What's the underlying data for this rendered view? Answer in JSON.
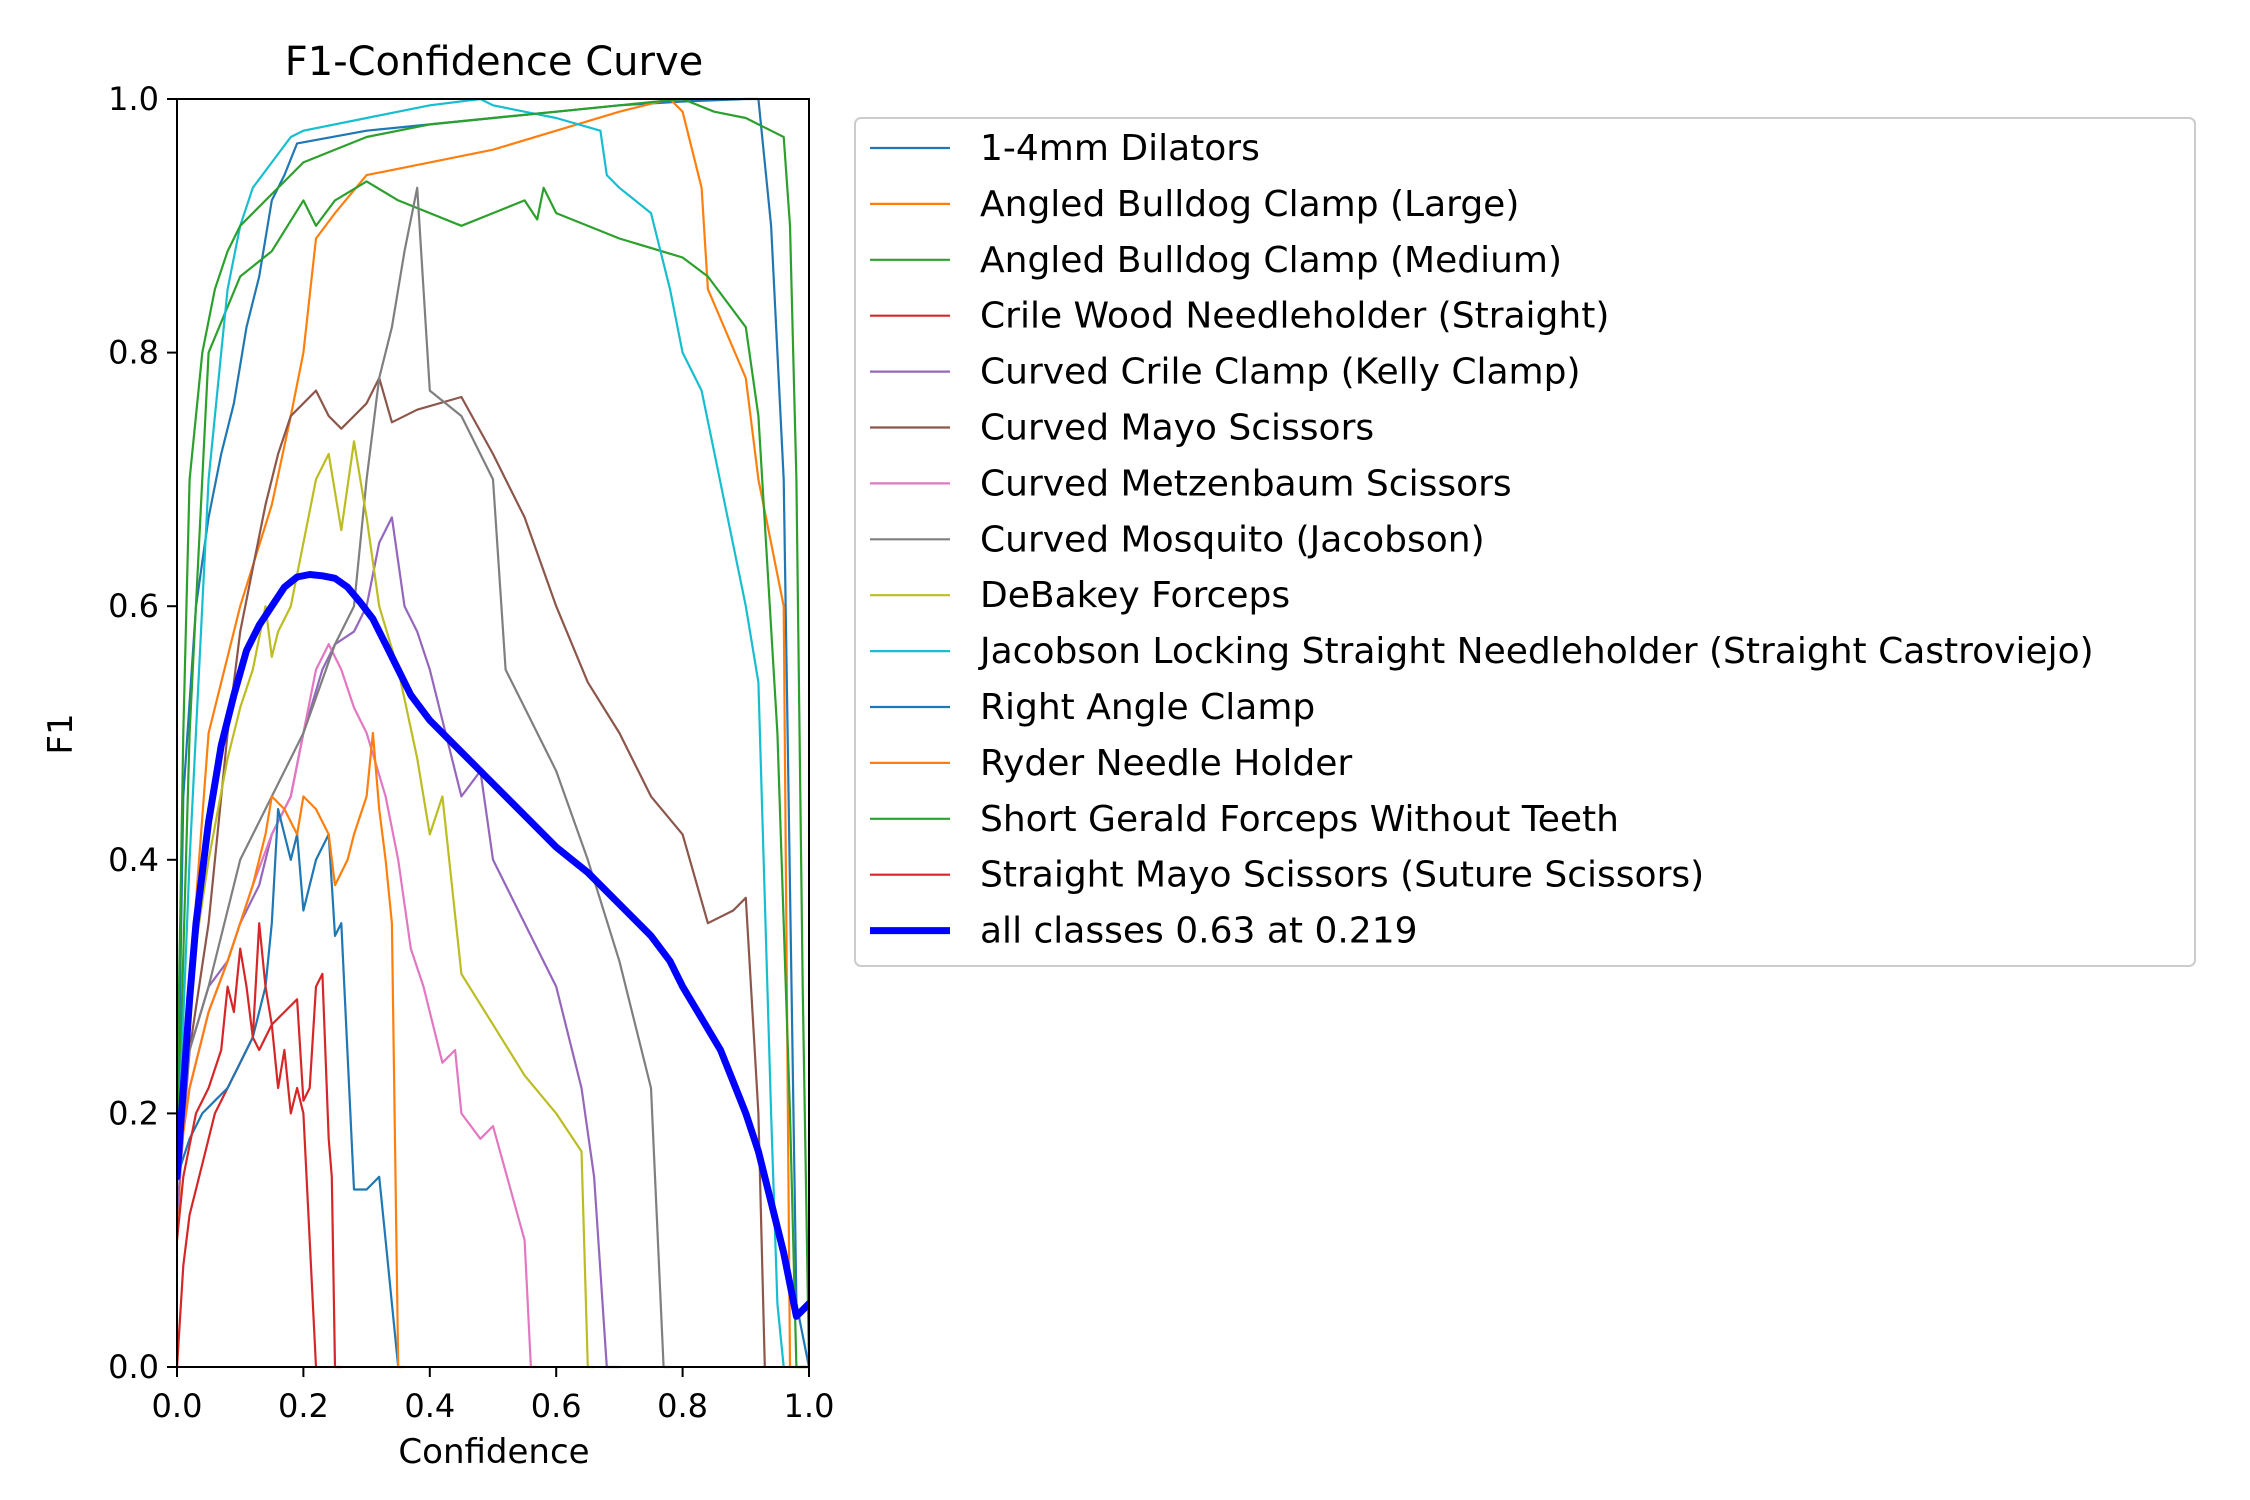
{
  "chart_data": {
    "type": "line",
    "title": "F1-Confidence Curve",
    "xlabel": "Confidence",
    "ylabel": "F1",
    "xlim": [
      0,
      1
    ],
    "ylim": [
      0,
      1
    ],
    "x_ticks": [
      "0.0",
      "0.2",
      "0.4",
      "0.6",
      "0.8",
      "1.0"
    ],
    "y_ticks": [
      "0.0",
      "0.2",
      "0.4",
      "0.6",
      "0.8",
      "1.0"
    ],
    "grid": false,
    "legend_position": "outside-right",
    "series": [
      {
        "name": "1-4mm Dilators",
        "color": "#1f77b4",
        "width": 2.2,
        "x": [
          0,
          0.01,
          0.03,
          0.05,
          0.07,
          0.09,
          0.11,
          0.13,
          0.15,
          0.17,
          0.19,
          0.3,
          0.4,
          0.5,
          0.6,
          0.7,
          0.8,
          0.9,
          0.92,
          0.94,
          0.96,
          0.98,
          1.0
        ],
        "y": [
          0.15,
          0.45,
          0.6,
          0.67,
          0.72,
          0.76,
          0.82,
          0.86,
          0.92,
          0.94,
          0.965,
          0.975,
          0.98,
          0.985,
          0.99,
          0.995,
          0.998,
          1.0,
          1.0,
          0.9,
          0.7,
          0.05,
          0.0
        ]
      },
      {
        "name": "Angled Bulldog Clamp (Large)",
        "color": "#ff7f0e",
        "width": 2.2,
        "x": [
          0,
          0.02,
          0.05,
          0.1,
          0.15,
          0.18,
          0.2,
          0.22,
          0.25,
          0.3,
          0.4,
          0.5,
          0.6,
          0.7,
          0.78,
          0.8,
          0.83,
          0.84,
          0.9,
          0.92,
          0.96,
          0.97,
          1.0
        ],
        "y": [
          0.1,
          0.3,
          0.5,
          0.6,
          0.68,
          0.75,
          0.8,
          0.89,
          0.91,
          0.94,
          0.95,
          0.96,
          0.975,
          0.99,
          1.0,
          0.99,
          0.93,
          0.85,
          0.78,
          0.7,
          0.6,
          0.0,
          0.0
        ]
      },
      {
        "name": "Angled Bulldog Clamp (Medium)",
        "color": "#2ca02c",
        "width": 2.2,
        "x": [
          0,
          0.02,
          0.05,
          0.1,
          0.15,
          0.2,
          0.22,
          0.25,
          0.3,
          0.35,
          0.45,
          0.5,
          0.55,
          0.57,
          0.58,
          0.6,
          0.7,
          0.8,
          0.84,
          0.9,
          0.92,
          0.95,
          0.97,
          0.98,
          1.0
        ],
        "y": [
          0.15,
          0.5,
          0.8,
          0.86,
          0.88,
          0.92,
          0.9,
          0.92,
          0.935,
          0.92,
          0.9,
          0.91,
          0.92,
          0.905,
          0.93,
          0.91,
          0.89,
          0.875,
          0.86,
          0.82,
          0.75,
          0.5,
          0.2,
          0.0,
          0.0
        ]
      },
      {
        "name": "Crile Wood Needleholder (Straight)",
        "color": "#d62728",
        "width": 2.2,
        "x": [
          0,
          0.01,
          0.02,
          0.04,
          0.06,
          0.08,
          0.1,
          0.12,
          0.13,
          0.15,
          0.17,
          0.19,
          0.2,
          0.21,
          0.22,
          0.23,
          0.24,
          0.245,
          0.25,
          0.26
        ],
        "y": [
          0.0,
          0.08,
          0.12,
          0.16,
          0.2,
          0.22,
          0.24,
          0.26,
          0.25,
          0.27,
          0.28,
          0.29,
          0.21,
          0.22,
          0.3,
          0.31,
          0.18,
          0.15,
          0.0,
          0.0
        ]
      },
      {
        "name": "Curved Crile Clamp (Kelly Clamp)",
        "color": "#9467bd",
        "width": 2.2,
        "x": [
          0,
          0.02,
          0.05,
          0.08,
          0.1,
          0.13,
          0.15,
          0.18,
          0.2,
          0.23,
          0.25,
          0.28,
          0.3,
          0.32,
          0.34,
          0.36,
          0.38,
          0.4,
          0.45,
          0.48,
          0.5,
          0.55,
          0.6,
          0.64,
          0.66,
          0.68,
          0.7
        ],
        "y": [
          0.12,
          0.25,
          0.3,
          0.32,
          0.35,
          0.38,
          0.42,
          0.45,
          0.5,
          0.55,
          0.57,
          0.58,
          0.6,
          0.65,
          0.67,
          0.6,
          0.58,
          0.55,
          0.45,
          0.47,
          0.4,
          0.35,
          0.3,
          0.22,
          0.15,
          0.0,
          0.0
        ]
      },
      {
        "name": "Curved Mayo Scissors",
        "color": "#8c564b",
        "width": 2.2,
        "x": [
          0,
          0.02,
          0.05,
          0.08,
          0.1,
          0.12,
          0.14,
          0.16,
          0.18,
          0.2,
          0.22,
          0.24,
          0.26,
          0.28,
          0.3,
          0.32,
          0.34,
          0.38,
          0.45,
          0.5,
          0.52,
          0.55,
          0.6,
          0.65,
          0.7,
          0.75,
          0.8,
          0.84,
          0.88,
          0.9,
          0.92,
          0.93
        ],
        "y": [
          0.15,
          0.25,
          0.35,
          0.5,
          0.58,
          0.63,
          0.68,
          0.72,
          0.75,
          0.76,
          0.77,
          0.75,
          0.74,
          0.75,
          0.76,
          0.78,
          0.745,
          0.755,
          0.765,
          0.72,
          0.7,
          0.67,
          0.6,
          0.54,
          0.5,
          0.45,
          0.42,
          0.35,
          0.36,
          0.37,
          0.2,
          0.0
        ]
      },
      {
        "name": "Curved Metzenbaum Scissors",
        "color": "#e377c2",
        "width": 2.2,
        "x": [
          0,
          0.02,
          0.05,
          0.08,
          0.1,
          0.12,
          0.15,
          0.18,
          0.2,
          0.22,
          0.24,
          0.26,
          0.28,
          0.3,
          0.33,
          0.35,
          0.37,
          0.39,
          0.4,
          0.42,
          0.44,
          0.45,
          0.48,
          0.5,
          0.55,
          0.56,
          0.57
        ],
        "y": [
          0.15,
          0.22,
          0.28,
          0.32,
          0.35,
          0.38,
          0.42,
          0.45,
          0.5,
          0.55,
          0.57,
          0.55,
          0.52,
          0.5,
          0.45,
          0.4,
          0.33,
          0.3,
          0.28,
          0.24,
          0.25,
          0.2,
          0.18,
          0.19,
          0.1,
          0.0,
          0.0
        ]
      },
      {
        "name": "Curved Mosquito (Jacobson)",
        "color": "#7f7f7f",
        "width": 2.2,
        "x": [
          0,
          0.02,
          0.05,
          0.1,
          0.15,
          0.2,
          0.25,
          0.28,
          0.3,
          0.32,
          0.34,
          0.36,
          0.38,
          0.39,
          0.4,
          0.45,
          0.5,
          0.52,
          0.55,
          0.6,
          0.65,
          0.7,
          0.75,
          0.77,
          0.78
        ],
        "y": [
          0.15,
          0.25,
          0.3,
          0.4,
          0.45,
          0.5,
          0.57,
          0.6,
          0.7,
          0.78,
          0.82,
          0.88,
          0.93,
          0.85,
          0.77,
          0.75,
          0.7,
          0.55,
          0.52,
          0.47,
          0.4,
          0.32,
          0.22,
          0.0,
          0.0
        ]
      },
      {
        "name": "DeBakey Forceps",
        "color": "#bcbd22",
        "width": 2.2,
        "x": [
          0,
          0.02,
          0.05,
          0.08,
          0.1,
          0.12,
          0.14,
          0.15,
          0.16,
          0.18,
          0.2,
          0.22,
          0.24,
          0.26,
          0.28,
          0.3,
          0.32,
          0.35,
          0.38,
          0.4,
          0.42,
          0.45,
          0.5,
          0.55,
          0.6,
          0.64,
          0.65,
          0.66
        ],
        "y": [
          0.15,
          0.3,
          0.4,
          0.48,
          0.52,
          0.55,
          0.6,
          0.56,
          0.58,
          0.6,
          0.65,
          0.7,
          0.72,
          0.66,
          0.73,
          0.67,
          0.6,
          0.55,
          0.48,
          0.42,
          0.45,
          0.31,
          0.27,
          0.23,
          0.2,
          0.17,
          0.0,
          0.0
        ]
      },
      {
        "name": "Jacobson Locking Straight Needleholder (Straight Castroviejo)",
        "color": "#17becf",
        "width": 2.2,
        "x": [
          0,
          0.02,
          0.05,
          0.07,
          0.08,
          0.1,
          0.12,
          0.15,
          0.18,
          0.2,
          0.3,
          0.4,
          0.48,
          0.5,
          0.55,
          0.6,
          0.67,
          0.68,
          0.7,
          0.75,
          0.78,
          0.8,
          0.83,
          0.9,
          0.92,
          0.94,
          0.95,
          0.96
        ],
        "y": [
          0.15,
          0.4,
          0.7,
          0.8,
          0.85,
          0.9,
          0.93,
          0.95,
          0.97,
          0.975,
          0.985,
          0.995,
          1.0,
          0.995,
          0.99,
          0.985,
          0.975,
          0.94,
          0.93,
          0.91,
          0.85,
          0.8,
          0.77,
          0.6,
          0.54,
          0.2,
          0.05,
          0.0
        ]
      },
      {
        "name": "Right Angle Clamp",
        "color": "#1f77b4",
        "width": 2.2,
        "x": [
          0,
          0.02,
          0.04,
          0.06,
          0.08,
          0.1,
          0.12,
          0.14,
          0.15,
          0.16,
          0.18,
          0.19,
          0.2,
          0.21,
          0.22,
          0.24,
          0.25,
          0.26,
          0.28,
          0.3,
          0.32,
          0.33,
          0.35
        ],
        "y": [
          0.15,
          0.18,
          0.2,
          0.21,
          0.22,
          0.24,
          0.26,
          0.3,
          0.35,
          0.44,
          0.4,
          0.42,
          0.36,
          0.38,
          0.4,
          0.42,
          0.34,
          0.35,
          0.14,
          0.14,
          0.15,
          0.1,
          0.0
        ]
      },
      {
        "name": "Ryder Needle Holder",
        "color": "#ff7f0e",
        "width": 2.2,
        "x": [
          0,
          0.02,
          0.05,
          0.08,
          0.1,
          0.12,
          0.14,
          0.15,
          0.17,
          0.19,
          0.2,
          0.22,
          0.24,
          0.25,
          0.27,
          0.28,
          0.3,
          0.31,
          0.32,
          0.33,
          0.34,
          0.35,
          0.36
        ],
        "y": [
          0.15,
          0.22,
          0.28,
          0.32,
          0.35,
          0.38,
          0.42,
          0.45,
          0.44,
          0.42,
          0.45,
          0.44,
          0.42,
          0.38,
          0.4,
          0.42,
          0.45,
          0.5,
          0.44,
          0.4,
          0.35,
          0.0,
          0.0
        ]
      },
      {
        "name": "Short Gerald Forceps Without Teeth",
        "color": "#2ca02c",
        "width": 2.2,
        "x": [
          0,
          0.01,
          0.02,
          0.04,
          0.06,
          0.08,
          0.1,
          0.2,
          0.3,
          0.4,
          0.5,
          0.6,
          0.7,
          0.8,
          0.85,
          0.9,
          0.92,
          0.94,
          0.96,
          0.97,
          0.98,
          0.99,
          1.0
        ],
        "y": [
          0.2,
          0.5,
          0.7,
          0.8,
          0.85,
          0.88,
          0.9,
          0.95,
          0.97,
          0.98,
          0.985,
          0.99,
          0.995,
          1.0,
          0.99,
          0.985,
          0.98,
          0.975,
          0.97,
          0.9,
          0.7,
          0.3,
          0.0
        ]
      },
      {
        "name": "Straight Mayo Scissors (Suture Scissors)",
        "color": "#d62728",
        "width": 2.2,
        "x": [
          0,
          0.01,
          0.03,
          0.05,
          0.07,
          0.08,
          0.09,
          0.1,
          0.11,
          0.12,
          0.13,
          0.14,
          0.15,
          0.16,
          0.17,
          0.18,
          0.19,
          0.2,
          0.21,
          0.22
        ],
        "y": [
          0.1,
          0.15,
          0.2,
          0.22,
          0.25,
          0.3,
          0.28,
          0.33,
          0.3,
          0.26,
          0.35,
          0.3,
          0.27,
          0.22,
          0.25,
          0.2,
          0.22,
          0.2,
          0.1,
          0.0
        ]
      },
      {
        "name": "all classes 0.63 at 0.219",
        "color": "#0000ff",
        "width": 7,
        "x": [
          0,
          0.01,
          0.02,
          0.03,
          0.05,
          0.07,
          0.09,
          0.11,
          0.13,
          0.15,
          0.17,
          0.19,
          0.21,
          0.23,
          0.25,
          0.27,
          0.29,
          0.31,
          0.33,
          0.35,
          0.37,
          0.4,
          0.45,
          0.5,
          0.55,
          0.6,
          0.65,
          0.7,
          0.75,
          0.78,
          0.8,
          0.83,
          0.86,
          0.88,
          0.9,
          0.92,
          0.94,
          0.96,
          0.98,
          1.0
        ],
        "y": [
          0.15,
          0.22,
          0.29,
          0.35,
          0.43,
          0.49,
          0.53,
          0.565,
          0.585,
          0.6,
          0.615,
          0.623,
          0.625,
          0.624,
          0.622,
          0.615,
          0.603,
          0.59,
          0.57,
          0.55,
          0.53,
          0.51,
          0.485,
          0.46,
          0.435,
          0.41,
          0.39,
          0.365,
          0.34,
          0.32,
          0.3,
          0.275,
          0.25,
          0.225,
          0.2,
          0.17,
          0.13,
          0.09,
          0.04,
          0.05
        ]
      }
    ]
  }
}
